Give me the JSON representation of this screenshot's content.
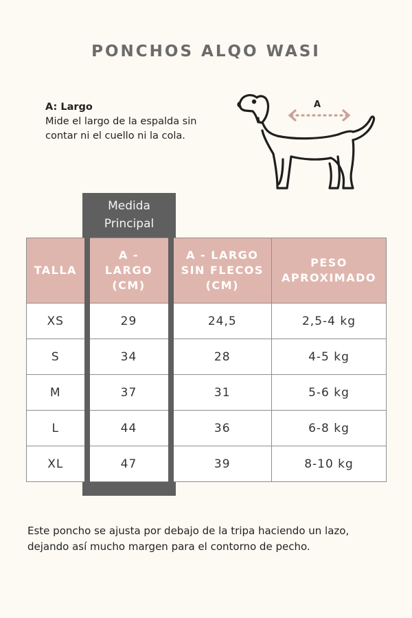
{
  "title": "PONCHOS ALQO WASI",
  "measure": {
    "label": "A: Largo",
    "description": "Mide el largo de la espalda sin contar ni el cuello ni la cola."
  },
  "diagram": {
    "arrow_label": "A"
  },
  "main_tab": {
    "line1": "Medida",
    "line2": "Principal"
  },
  "table": {
    "headers": [
      {
        "lines": [
          "TALLA"
        ]
      },
      {
        "lines": [
          "A -",
          "LARGO",
          "(CM)"
        ]
      },
      {
        "lines": [
          "A - LARGO",
          "SIN FLECOS",
          "(CM)"
        ]
      },
      {
        "lines": [
          "PESO",
          "APROXIMADO"
        ]
      }
    ],
    "rows": [
      [
        "XS",
        "29",
        "24,5",
        "2,5-4 kg"
      ],
      [
        "S",
        "34",
        "28",
        "4-5 kg"
      ],
      [
        "M",
        "37",
        "31",
        "5-6 kg"
      ],
      [
        "L",
        "44",
        "36",
        "6-8 kg"
      ],
      [
        "XL",
        "47",
        "39",
        "8-10 kg"
      ]
    ]
  },
  "note": "Este poncho se ajusta por debajo de la tripa haciendo un lazo, dejando así mucho margen para el contorno de pecho.",
  "colors": {
    "background": "#fdfaf3",
    "header_pink": "#dfb6ae",
    "highlight_gray": "#5f5f5f",
    "arrow": "#c9a29b"
  }
}
